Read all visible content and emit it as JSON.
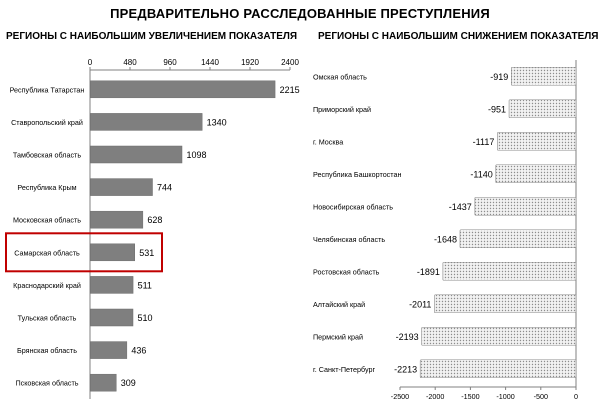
{
  "title": "ПРЕДВАРИТЕЛЬНО РАССЛЕДОВАННЫЕ ПРЕСТУПЛЕНИЯ",
  "chart_data": [
    {
      "type": "bar",
      "orientation": "horizontal",
      "title": "РЕГИОНЫ С НАИБОЛЬШИМ УВЕЛИЧЕНИЕМ ПОКАЗАТЕЛЯ",
      "categories": [
        "Республика Татарстан",
        "Ставропольский край",
        "Тамбовская область",
        "Республика Крым",
        "Московская область",
        "Самарская область",
        "Краснодарский край",
        "Тульская область",
        "Брянская область",
        "Псковская область"
      ],
      "values": [
        2215,
        1340,
        1098,
        744,
        628,
        531,
        511,
        510,
        436,
        309
      ],
      "xlim": [
        0,
        2400
      ],
      "ticks": [
        0,
        480,
        960,
        1440,
        1920,
        2400
      ],
      "axis_position": "top",
      "grid": false,
      "bar_color": "#7f7f7f",
      "highlight_category": "Самарская область",
      "highlight_color": "#c00000"
    },
    {
      "type": "bar",
      "orientation": "horizontal",
      "title": "РЕГИОНЫ С НАИБОЛЬШИМ СНИЖЕНИЕМ ПОКАЗАТЕЛЯ",
      "categories": [
        "Омская область",
        "Приморский край",
        "г. Москва",
        "Республика Башкортостан",
        "Новосибирская область",
        "Челябинская область",
        "Ростовская область",
        "Алтайский край",
        "Пермский край",
        "г. Санкт-Петербург"
      ],
      "values": [
        -919,
        -951,
        -1117,
        -1140,
        -1437,
        -1648,
        -1891,
        -2011,
        -2193,
        -2213
      ],
      "xlim": [
        -2500,
        0
      ],
      "ticks": [
        -2500,
        -2000,
        -1500,
        -1000,
        -500,
        0
      ],
      "axis_position": "bottom",
      "grid": false,
      "bar_fill": "dotted",
      "bar_color": "#d9d9d9"
    }
  ]
}
